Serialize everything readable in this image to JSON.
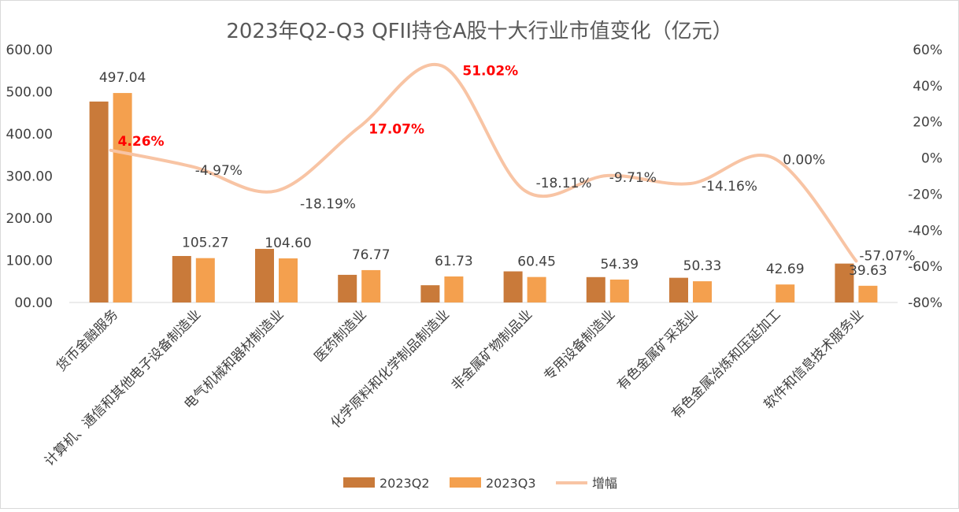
{
  "chart_data": {
    "type": "bar",
    "title": "2023年Q2-Q3 QFII持仓A股十大行业市值变化（亿元）",
    "categories": [
      "货币金融服务",
      "计算机、通信和其他电子设备制造业",
      "电气机械和器材制造业",
      "医药制造业",
      "化学原料和化学制品制造业",
      "非金属矿物制品业",
      "专用设备制造业",
      "有色金属矿采选业",
      "有色金属冶炼和压延加工",
      "软件和信息技术服务业"
    ],
    "series": [
      {
        "name": "2023Q2",
        "kind": "bar",
        "axis": "left",
        "color": "#c97a3a",
        "values": [
          476.8,
          110.3,
          127.2,
          65.6,
          40.9,
          73.8,
          60.2,
          58.6,
          0,
          92.3
        ]
      },
      {
        "name": "2023Q3",
        "kind": "bar",
        "axis": "left",
        "color": "#f4a04e",
        "values": [
          497.04,
          105.27,
          104.6,
          76.77,
          61.73,
          60.45,
          54.39,
          50.33,
          42.69,
          39.63
        ],
        "labels": [
          "497.04",
          "105.27",
          "104.60",
          "76.77",
          "61.73",
          "60.45",
          "54.39",
          "50.33",
          "42.69",
          "39.63"
        ]
      },
      {
        "name": "增幅",
        "kind": "line",
        "axis": "right",
        "color": "#f8c4a4",
        "values": [
          4.26,
          -4.97,
          -18.19,
          17.07,
          51.02,
          -18.11,
          -9.71,
          -14.16,
          0.0,
          -57.07
        ],
        "labels": [
          "4.26%",
          "-4.97%",
          "-18.19%",
          "17.07%",
          "51.02%",
          "-18.11%",
          "-9.71%",
          "-14.16%",
          "0.00%",
          "-57.07%"
        ],
        "highlight": [
          true,
          false,
          false,
          true,
          true,
          false,
          false,
          false,
          false,
          false
        ]
      }
    ],
    "y_left": {
      "ylim": [
        0,
        600
      ],
      "ticks": [
        "600.00",
        "500.00",
        "400.00",
        "300.00",
        "200.00",
        "100.00",
        "00.00"
      ],
      "tick_values": [
        600,
        500,
        400,
        300,
        200,
        100,
        0
      ]
    },
    "y_right": {
      "ylim": [
        -80,
        60
      ],
      "ticks": [
        "60%",
        "40%",
        "20%",
        "0%",
        "-20%",
        "-40%",
        "-60%",
        "-80%"
      ],
      "tick_values": [
        60,
        40,
        20,
        0,
        -20,
        -40,
        -60,
        -80
      ]
    },
    "grid": false,
    "legend_position": "bottom",
    "highlight_color": "#ff0000"
  }
}
